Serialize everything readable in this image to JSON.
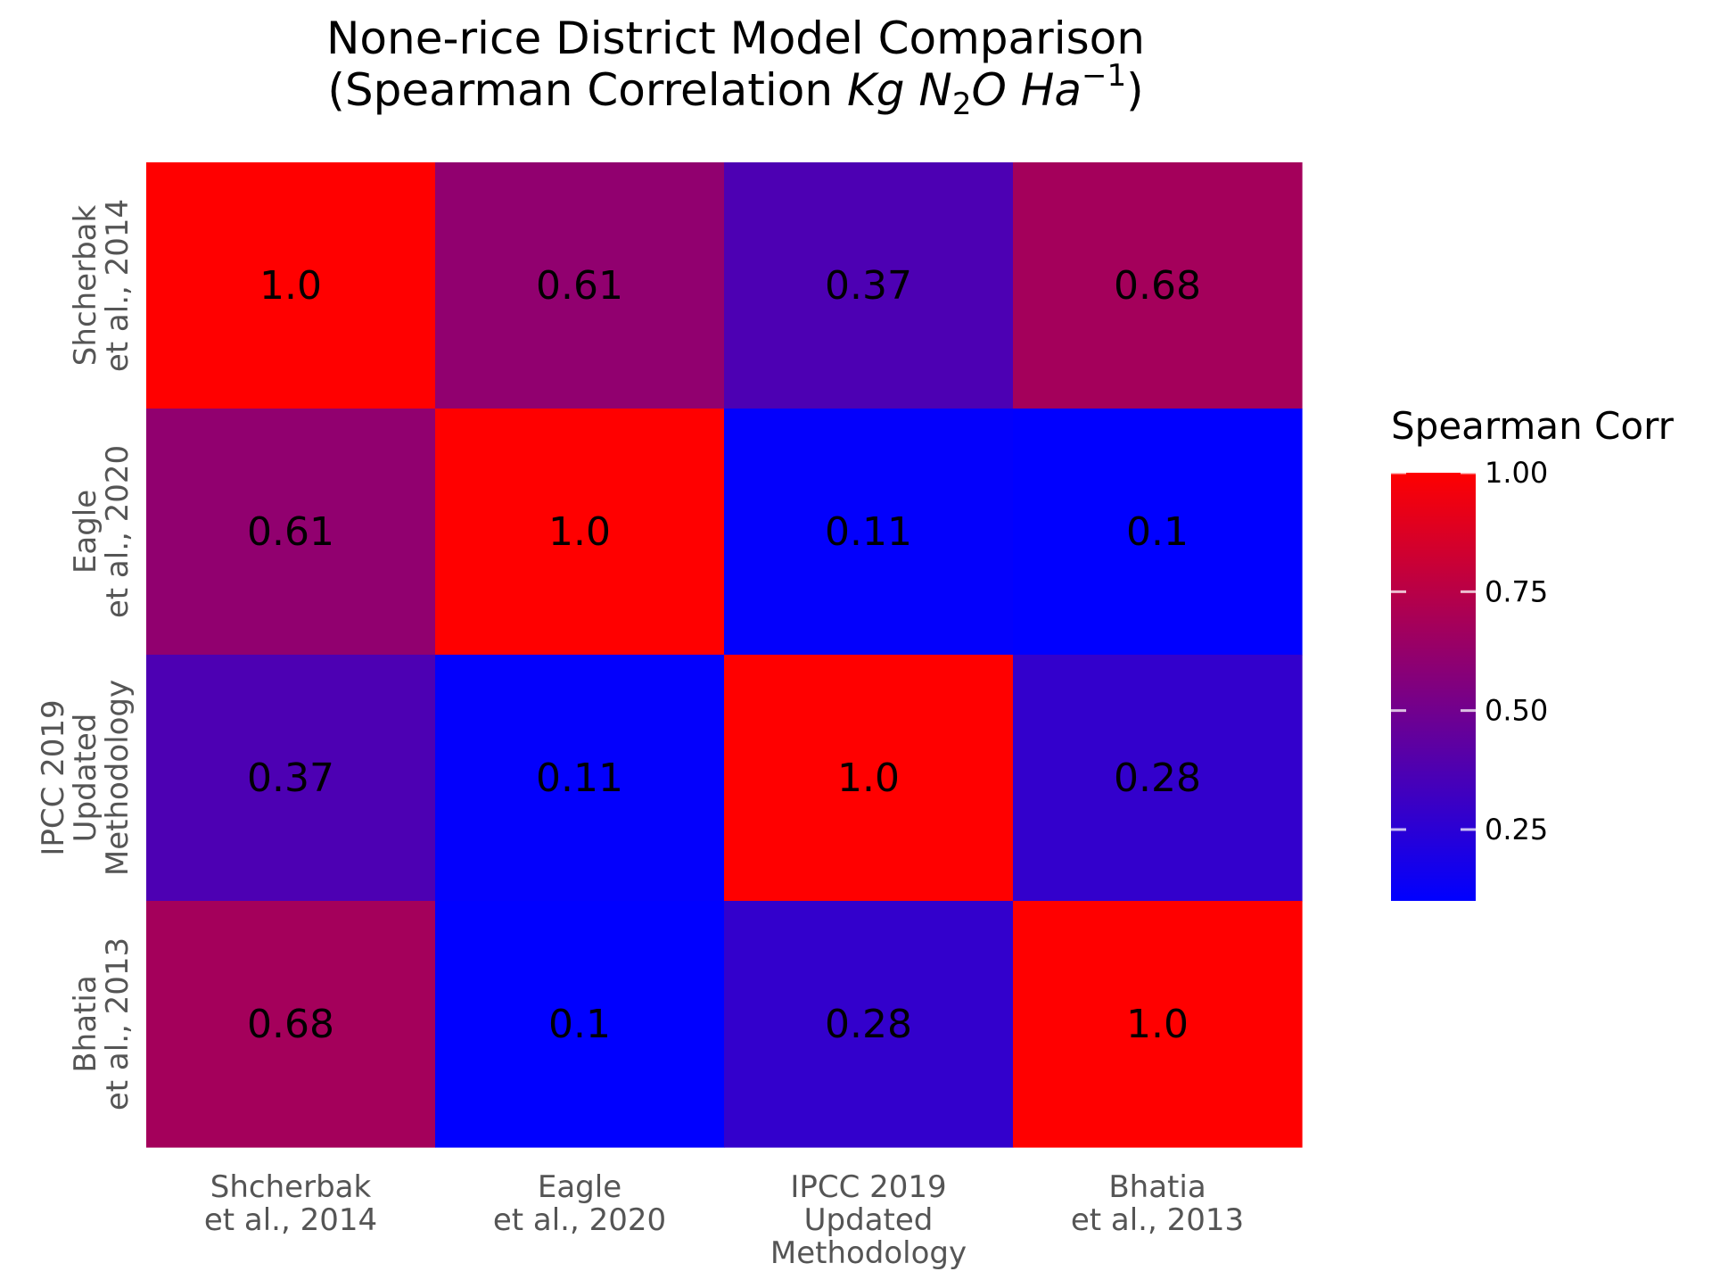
{
  "chart_data": {
    "type": "heatmap",
    "title_line1": "None-rice District Model Comparison",
    "title_line2_prefix": "(Spearman Correlation ",
    "title_line2_suffix": ")",
    "title_math": {
      "kg": "Kg",
      "n": "N",
      "n_sub": "2",
      "o": "O",
      "ha": "Ha",
      "ha_sup": "−1"
    },
    "rows": [
      [
        "Shcherbak",
        "et al., 2014"
      ],
      [
        "Eagle",
        "et al., 2020"
      ],
      [
        "IPCC 2019",
        "Updated",
        "Methodology"
      ],
      [
        "Bhatia",
        "et al., 2013"
      ]
    ],
    "columns": [
      [
        "Shcherbak",
        "et al., 2014"
      ],
      [
        "Eagle",
        "et al., 2020"
      ],
      [
        "IPCC 2019",
        "Updated",
        "Methodology"
      ],
      [
        "Bhatia",
        "et al., 2013"
      ]
    ],
    "values": [
      [
        1.0,
        0.61,
        0.37,
        0.68
      ],
      [
        0.61,
        1.0,
        0.11,
        0.1
      ],
      [
        0.37,
        0.11,
        1.0,
        0.28
      ],
      [
        0.68,
        0.1,
        0.28,
        1.0
      ]
    ],
    "cell_labels": [
      [
        "1.0",
        "0.61",
        "0.37",
        "0.68"
      ],
      [
        "0.61",
        "1.0",
        "0.11",
        "0.1"
      ],
      [
        "0.37",
        "0.11",
        "1.0",
        "0.28"
      ],
      [
        "0.68",
        "0.1",
        "0.28",
        "1.0"
      ]
    ],
    "colorbar": {
      "title": "Spearman Corr",
      "min": 0.1,
      "max": 1.0,
      "ticks": [
        0.25,
        0.5,
        0.75,
        1.0
      ],
      "tick_labels": [
        "0.25",
        "0.50",
        "0.75",
        "1.00"
      ],
      "low_color": "#0000ff",
      "high_color": "#ff0000"
    },
    "grid": false,
    "legend_position": "right"
  }
}
